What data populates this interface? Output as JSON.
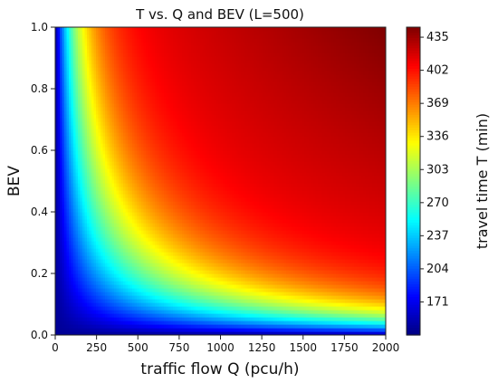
{
  "chart_data": {
    "type": "heatmap",
    "title": "T vs. Q and BEV (L=500)",
    "xlabel": "traffic flow Q (pcu/h)",
    "ylabel": "BEV",
    "xlim": [
      0,
      2000
    ],
    "ylim": [
      0.0,
      1.0
    ],
    "x_ticks": [
      0,
      250,
      500,
      750,
      1000,
      1250,
      1500,
      1750,
      2000
    ],
    "y_ticks": [
      "0.0",
      "0.2",
      "0.4",
      "0.6",
      "0.8",
      "1.0"
    ],
    "colorbar": {
      "label": "travel time T  (min)",
      "range": [
        138,
        445
      ],
      "ticks": [
        171,
        204,
        237,
        270,
        303,
        336,
        369,
        402,
        435
      ]
    },
    "colormap": "jet",
    "grid": false,
    "pattern": "T increases with both Q and BEV; lowest (~140) along the Q=0 and BEV=0 edges, highest (~440) at Q=2000, BEV=1.0"
  }
}
